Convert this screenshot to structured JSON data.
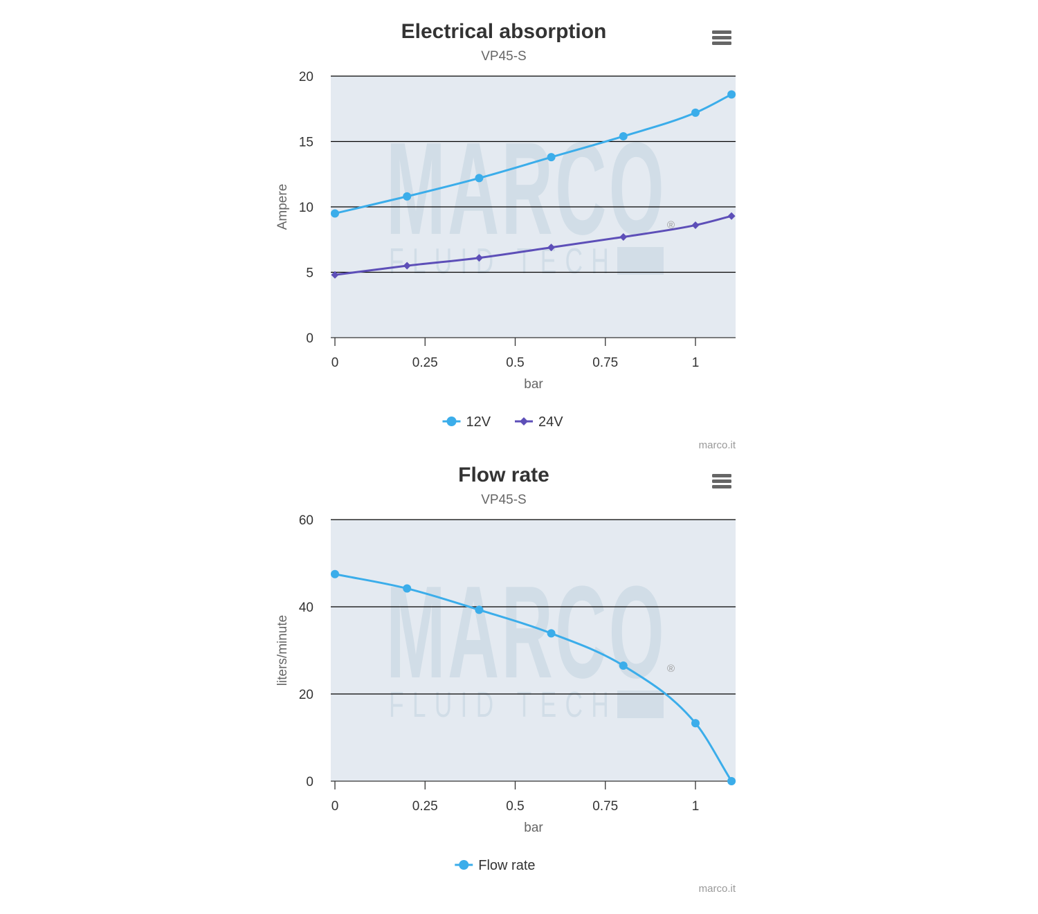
{
  "colors": {
    "series_12v": "#3badea",
    "series_24v": "#5d4fb8",
    "flow": "#3badea",
    "plot_bg": "#e4eaf1",
    "grid": "#000000",
    "text": "#333333",
    "muted": "#666666",
    "credits": "#999999",
    "menu_icon": "#666666"
  },
  "icons": {
    "menu": "hamburger-menu-icon"
  },
  "watermark": {
    "line1": "MARCO",
    "line2": "FLUID TECH",
    "mark": "®"
  },
  "chart_data": [
    {
      "type": "line",
      "title": "Electrical absorption",
      "subtitle": "VP45-S",
      "xlabel": "bar",
      "ylabel": "Ampere",
      "xlim": [
        0,
        1.1
      ],
      "ylim": [
        0,
        20
      ],
      "xticks": [
        0,
        0.25,
        0.5,
        0.75,
        1
      ],
      "xtick_labels": [
        "0",
        "0.25",
        "0.5",
        "0.75",
        "1"
      ],
      "yticks": [
        0,
        5,
        10,
        15,
        20
      ],
      "ytick_labels": [
        "0",
        "5",
        "10",
        "15",
        "20"
      ],
      "grid": true,
      "legend_position": "bottom-center",
      "credits": "marco.it",
      "series": [
        {
          "name": "12V",
          "marker": "circle",
          "color": "#3badea",
          "x": [
            0,
            0.2,
            0.4,
            0.6,
            0.8,
            1.0,
            1.1
          ],
          "y": [
            9.5,
            10.8,
            12.2,
            13.8,
            15.4,
            17.2,
            18.6
          ]
        },
        {
          "name": "24V",
          "marker": "diamond",
          "color": "#5d4fb8",
          "x": [
            0,
            0.2,
            0.4,
            0.6,
            0.8,
            1.0,
            1.1
          ],
          "y": [
            4.8,
            5.5,
            6.1,
            6.9,
            7.7,
            8.6,
            9.3
          ]
        }
      ]
    },
    {
      "type": "line",
      "title": "Flow rate",
      "subtitle": "VP45-S",
      "xlabel": "bar",
      "ylabel": "liters/minute",
      "xlim": [
        0,
        1.1
      ],
      "ylim": [
        0,
        60
      ],
      "xticks": [
        0,
        0.25,
        0.5,
        0.75,
        1
      ],
      "xtick_labels": [
        "0",
        "0.25",
        "0.5",
        "0.75",
        "1"
      ],
      "yticks": [
        0,
        20,
        40,
        60
      ],
      "ytick_labels": [
        "0",
        "20",
        "40",
        "60"
      ],
      "grid": true,
      "legend_position": "bottom-center",
      "credits": "marco.it",
      "series": [
        {
          "name": "Flow rate",
          "marker": "circle",
          "color": "#3badea",
          "x": [
            0,
            0.2,
            0.4,
            0.6,
            0.8,
            1.0,
            1.1
          ],
          "y": [
            47.5,
            44.2,
            39.3,
            33.9,
            26.5,
            13.3,
            0
          ]
        }
      ]
    }
  ]
}
